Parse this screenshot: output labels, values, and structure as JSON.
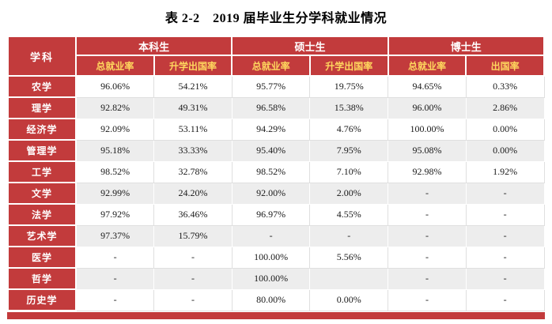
{
  "title": "表 2-2　2019 届毕业生分学科就业情况",
  "colors": {
    "header_red": "#c23b3c",
    "subheader_text": "#ffd75e",
    "row_stripe": "#ededed"
  },
  "table": {
    "corner_label": "学科",
    "groups": [
      {
        "label": "本科生",
        "cols": [
          "总就业率",
          "升学出国率"
        ]
      },
      {
        "label": "硕士生",
        "cols": [
          "总就业率",
          "升学出国率"
        ]
      },
      {
        "label": "博士生",
        "cols": [
          "总就业率",
          "出国率"
        ]
      }
    ],
    "rows": [
      {
        "label": "农学",
        "values": [
          "96.06%",
          "54.21%",
          "95.77%",
          "19.75%",
          "94.65%",
          "0.33%"
        ]
      },
      {
        "label": "理学",
        "values": [
          "92.82%",
          "49.31%",
          "96.58%",
          "15.38%",
          "96.00%",
          "2.86%"
        ]
      },
      {
        "label": "经济学",
        "values": [
          "92.09%",
          "53.11%",
          "94.29%",
          "4.76%",
          "100.00%",
          "0.00%"
        ]
      },
      {
        "label": "管理学",
        "values": [
          "95.18%",
          "33.33%",
          "95.40%",
          "7.95%",
          "95.08%",
          "0.00%"
        ]
      },
      {
        "label": "工学",
        "values": [
          "98.52%",
          "32.78%",
          "98.52%",
          "7.10%",
          "92.98%",
          "1.92%"
        ]
      },
      {
        "label": "文学",
        "values": [
          "92.99%",
          "24.20%",
          "92.00%",
          "2.00%",
          "-",
          "-"
        ]
      },
      {
        "label": "法学",
        "values": [
          "97.92%",
          "36.46%",
          "96.97%",
          "4.55%",
          "-",
          "-"
        ]
      },
      {
        "label": "艺术学",
        "values": [
          "97.37%",
          "15.79%",
          "-",
          "-",
          "-",
          "-"
        ]
      },
      {
        "label": "医学",
        "values": [
          "-",
          "-",
          "100.00%",
          "5.56%",
          "-",
          "-"
        ]
      },
      {
        "label": "哲学",
        "values": [
          "-",
          "-",
          "100.00%",
          "",
          "-",
          "-"
        ]
      },
      {
        "label": "历史学",
        "values": [
          "-",
          "-",
          "80.00%",
          "0.00%",
          "-",
          "-"
        ]
      }
    ]
  }
}
